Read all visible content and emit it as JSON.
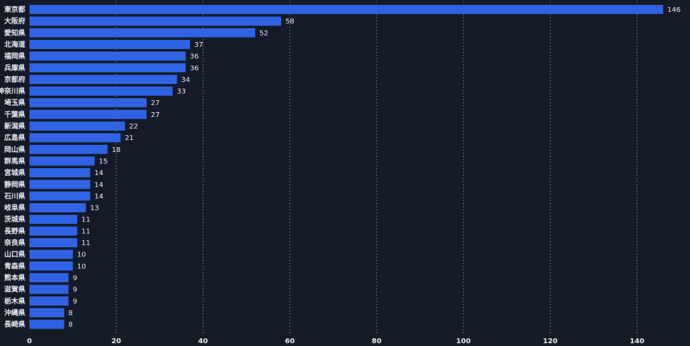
{
  "chart_data": {
    "type": "bar",
    "orientation": "horizontal",
    "title": "",
    "xlabel": "",
    "ylabel": "",
    "categories": [
      "東京都",
      "大阪府",
      "愛知県",
      "北海道",
      "福岡県",
      "兵庫県",
      "京都府",
      "神奈川県",
      "埼玉県",
      "千葉県",
      "新潟県",
      "広島県",
      "岡山県",
      "群馬県",
      "宮城県",
      "静岡県",
      "石川県",
      "岐阜県",
      "茨城県",
      "長野県",
      "奈良県",
      "山口県",
      "青森県",
      "熊本県",
      "滋賀県",
      "栃木県",
      "沖縄県",
      "長崎県"
    ],
    "values": [
      146,
      58,
      52,
      37,
      36,
      36,
      34,
      33,
      27,
      27,
      22,
      21,
      18,
      15,
      14,
      14,
      14,
      13,
      11,
      11,
      11,
      10,
      10,
      9,
      9,
      9,
      8,
      8
    ],
    "xlim": [
      0,
      148
    ],
    "xticks": [
      0,
      20,
      40,
      60,
      80,
      100,
      120,
      140
    ],
    "grid": true,
    "legend": "none",
    "colors": {
      "bar": "#2f63e6",
      "background": "#141a26",
      "text": "#e8ecf3",
      "grid": "#8d96a6"
    }
  }
}
